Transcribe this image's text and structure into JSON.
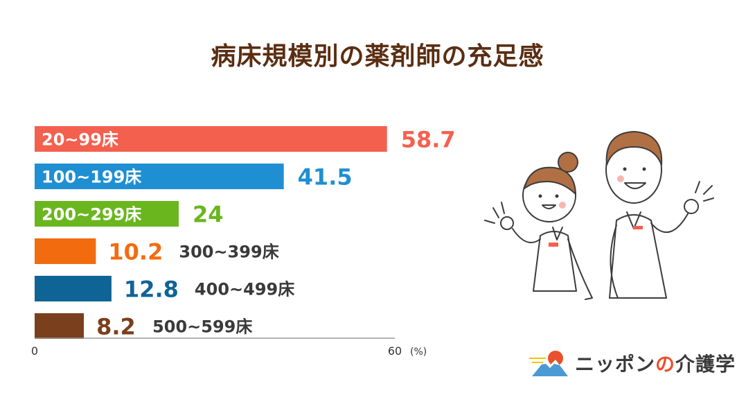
{
  "title": "病床規模別の薬剤師の充足感",
  "brand": {
    "part1": "ニッポン",
    "part2": "の",
    "part3": "介護学"
  },
  "chart_data": {
    "type": "bar",
    "orientation": "horizontal",
    "title": "病床規模別の薬剤師の充足感",
    "categories": [
      "20~99床",
      "100~199床",
      "200~299床",
      "300~399床",
      "400~499床",
      "500~599床"
    ],
    "values": [
      58.7,
      41.5,
      24,
      10.2,
      12.8,
      8.2
    ],
    "value_labels": [
      "58.7",
      "41.5",
      "24",
      "10.2",
      "12.8",
      "8.2"
    ],
    "colors": [
      "#f4604e",
      "#1e8fd2",
      "#6ab61e",
      "#f26b0f",
      "#0f6496",
      "#7a3f1c"
    ],
    "xlim": [
      0,
      60
    ],
    "x_tick_labels": [
      "0",
      "60"
    ],
    "x_unit": "(%)",
    "grid": false,
    "legend": "none"
  }
}
